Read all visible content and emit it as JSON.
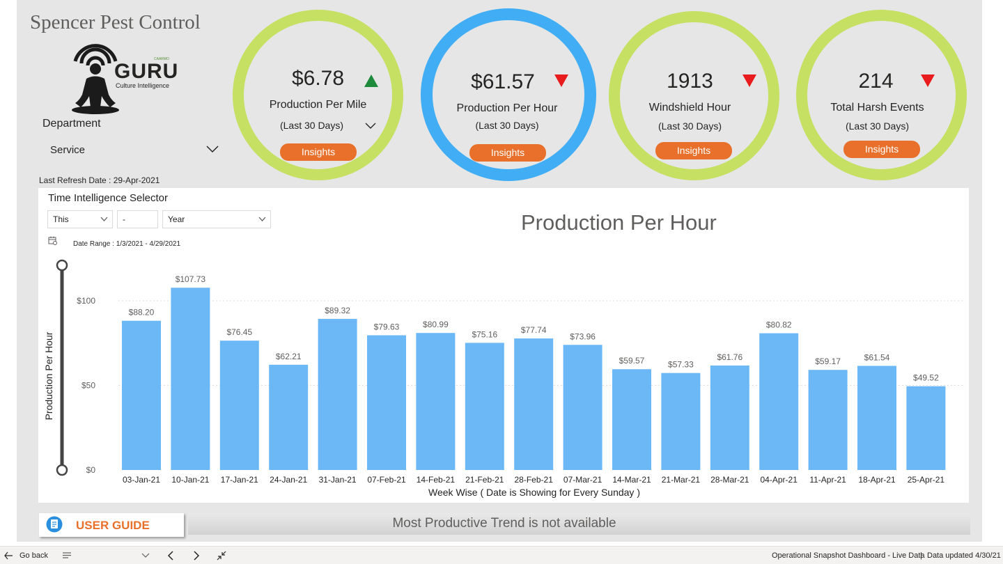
{
  "company": "Spencer Pest Control",
  "logo": {
    "word": "GURU",
    "subtitle": "Culture Intelligence",
    "brand": "CAARMO"
  },
  "department": {
    "label": "Department",
    "value": "Service"
  },
  "last_refresh": "Last Refresh Date : 29-Apr-2021",
  "kpis": [
    {
      "value": "$6.78",
      "label": "Production Per Mile",
      "sub": "(Last 30 Days)",
      "button": "Insights",
      "trend": "up",
      "ring": "#c5e062"
    },
    {
      "value": "$61.57",
      "label": "Production Per Hour",
      "sub": "(Last 30 Days)",
      "button": "Insights",
      "trend": "down",
      "ring": "#41adf4"
    },
    {
      "value": "1913",
      "label": "Windshield Hour",
      "sub": "(Last 30 Days)",
      "button": "Insights",
      "trend": "down",
      "ring": "#c5e062"
    },
    {
      "value": "214",
      "label": "Total Harsh Events",
      "sub": "(Last 30 Days)",
      "button": "Insights",
      "trend": "down",
      "ring": "#c5e062"
    }
  ],
  "time_selector": {
    "title": "Time Intelligence Selector",
    "period": "This",
    "number": "-",
    "unit": "Year",
    "date_range": "Date Range : 1/3/2021 - 4/29/2021"
  },
  "chart_data": {
    "type": "bar",
    "title": "Production Per Hour",
    "xlabel": "Week Wise ( Date is Showing for Every Sunday )",
    "ylabel": "Production Per Hour",
    "ylim": [
      0,
      120
    ],
    "yticks": [
      0,
      50,
      100
    ],
    "ytick_labels": [
      "$0",
      "$50",
      "$100"
    ],
    "categories": [
      "03-Jan-21",
      "10-Jan-21",
      "17-Jan-21",
      "24-Jan-21",
      "31-Jan-21",
      "07-Feb-21",
      "14-Feb-21",
      "21-Feb-21",
      "28-Feb-21",
      "07-Mar-21",
      "14-Mar-21",
      "21-Mar-21",
      "28-Mar-21",
      "04-Apr-21",
      "11-Apr-21",
      "18-Apr-21",
      "25-Apr-21"
    ],
    "values": [
      88.2,
      107.73,
      76.45,
      62.21,
      89.32,
      79.63,
      80.99,
      75.16,
      77.74,
      73.96,
      59.57,
      57.33,
      61.76,
      80.82,
      59.17,
      61.54,
      49.52
    ],
    "labels": [
      "$88.20",
      "$107.73",
      "$76.45",
      "$62.21",
      "$89.32",
      "$79.63",
      "$80.99",
      "$75.16",
      "$77.74",
      "$73.96",
      "$59.57",
      "$57.33",
      "$61.76",
      "$80.82",
      "$59.17",
      "$61.54",
      "$49.52"
    ],
    "bar_color": "#6cb8f6",
    "grid": true
  },
  "user_guide": "USER GUIDE",
  "trend_message": "Most Productive Trend is not available",
  "footer": {
    "back": "Go back",
    "report_name": "Operational Snapshot Dashboard - Live Data",
    "separator": "|",
    "updated": "Data updated 4/30/21"
  },
  "colors": {
    "accent": "#e8702a",
    "up": "#1e8a3c",
    "down": "#e81c1c"
  }
}
